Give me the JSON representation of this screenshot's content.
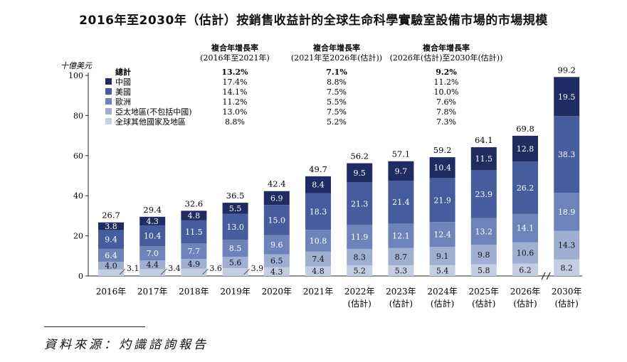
{
  "title": "2016年至2030年（估計）按銷售收益計的全球生命科學實驗室設備市場的市場規模",
  "source": "資料來源：灼識諮詢報告",
  "chart_data": {
    "type": "bar",
    "stacked": true,
    "y_unit_label": "十億美元",
    "ylim": [
      0,
      100
    ],
    "yticks": [
      0,
      20,
      40,
      60,
      80,
      100
    ],
    "axis_break_between": [
      "2026年",
      "2030年"
    ],
    "categories": [
      {
        "year": "2016年",
        "sub": ""
      },
      {
        "year": "2017年",
        "sub": ""
      },
      {
        "year": "2018年",
        "sub": ""
      },
      {
        "year": "2019年",
        "sub": ""
      },
      {
        "year": "2020年",
        "sub": ""
      },
      {
        "year": "2021年",
        "sub": ""
      },
      {
        "year": "2022年",
        "sub": "(估計)"
      },
      {
        "year": "2023年",
        "sub": "(估計)"
      },
      {
        "year": "2024年",
        "sub": "(估計)"
      },
      {
        "year": "2025年",
        "sub": "(估計)"
      },
      {
        "year": "2026年",
        "sub": "(估計)"
      },
      {
        "year": "2030年",
        "sub": "(估計)"
      }
    ],
    "totals": [
      "26.7",
      "29.4",
      "32.6",
      "36.5",
      "42.4",
      "49.7",
      "56.2",
      "57.1",
      "59.2",
      "64.1",
      "69.8",
      "99.2"
    ],
    "series": [
      {
        "name": "全球其他國家及地區",
        "color": "#c3cee3",
        "labels_outside": true,
        "values": [
          3.1,
          3.4,
          3.6,
          3.9,
          4.3,
          4.8,
          5.2,
          5.3,
          5.4,
          5.8,
          6.2,
          8.2
        ]
      },
      {
        "name": "亞太地區(不包括中國)",
        "color": "#9eafd2",
        "values": [
          4.0,
          4.4,
          4.9,
          5.6,
          6.5,
          7.4,
          8.3,
          8.7,
          9.1,
          9.8,
          10.6,
          14.3
        ]
      },
      {
        "name": "歐洲",
        "color": "#6e83b9",
        "values": [
          6.4,
          7.0,
          7.7,
          8.5,
          9.6,
          10.8,
          11.9,
          12.1,
          12.4,
          13.2,
          14.1,
          18.9
        ]
      },
      {
        "name": "美國",
        "color": "#475c9c",
        "values": [
          9.4,
          10.4,
          11.5,
          13.0,
          15.0,
          18.3,
          21.3,
          21.4,
          21.9,
          23.9,
          26.2,
          38.3
        ]
      },
      {
        "name": "中國",
        "color": "#1f2c62",
        "values": [
          3.8,
          4.3,
          4.8,
          5.5,
          6.9,
          8.4,
          9.5,
          9.7,
          10.4,
          11.5,
          12.8,
          19.5
        ]
      }
    ],
    "cagr_table": {
      "columns": [
        {
          "line1": "複合年增長率",
          "line2": "(2016年至2021年)"
        },
        {
          "line1": "複合年增長率",
          "line2": "(2021年至2026年(估計))"
        },
        {
          "line1": "複合年增長率",
          "line2": "(2026年(估計)至2030年(估計))"
        }
      ],
      "rows": [
        {
          "name": "總計",
          "color": "#ffffff",
          "bold": true,
          "values": [
            "13.2%",
            "7.1%",
            "9.2%"
          ]
        },
        {
          "name": "中國",
          "color": "#1f2c62",
          "values": [
            "17.4%",
            "8.8%",
            "11.2%"
          ]
        },
        {
          "name": "美國",
          "color": "#475c9c",
          "values": [
            "14.1%",
            "7.5%",
            "10.0%"
          ]
        },
        {
          "name": "歐洲",
          "color": "#6e83b9",
          "values": [
            "11.2%",
            "5.5%",
            "7.6%"
          ]
        },
        {
          "name": "亞太地區(不包括中國)",
          "color": "#9eafd2",
          "values": [
            "13.0%",
            "7.5%",
            "7.8%"
          ]
        },
        {
          "name": "全球其他國家及地區",
          "color": "#c3cee3",
          "values": [
            "8.8%",
            "5.2%",
            "7.3%"
          ]
        }
      ]
    }
  }
}
